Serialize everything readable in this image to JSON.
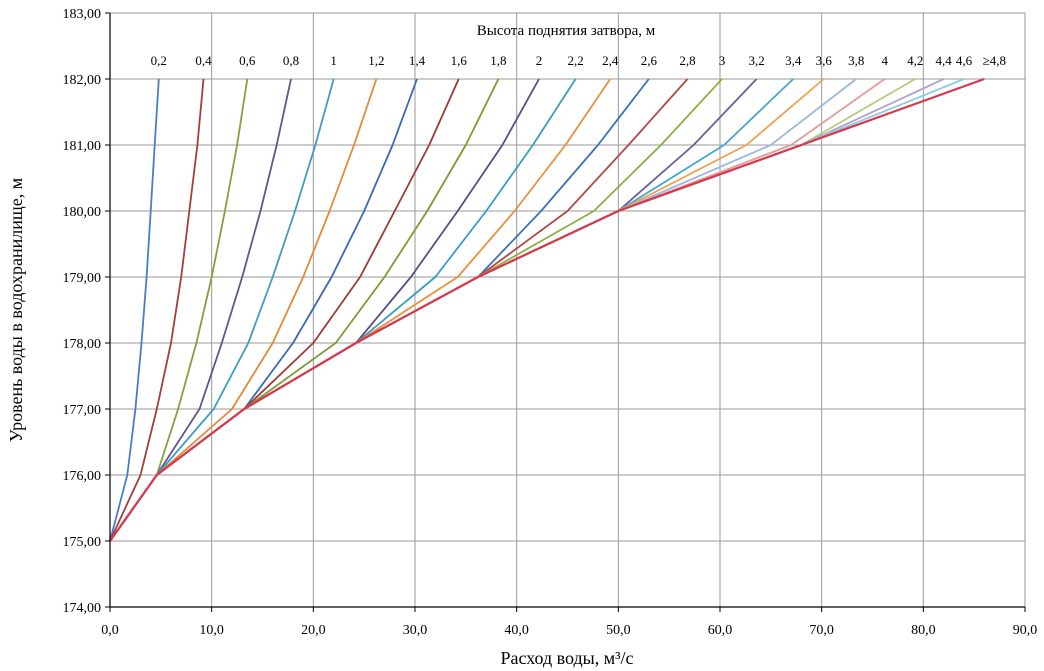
{
  "chart_data": {
    "type": "line",
    "xlabel": "Расход воды, м³/с",
    "ylabel": "Уровень воды в водохранилище, м",
    "legend_title": "Высота поднятия затвора, м",
    "xlim": [
      0,
      90
    ],
    "ylim": [
      174,
      183
    ],
    "x_ticks": [
      "0,0",
      "10,0",
      "20,0",
      "30,0",
      "40,0",
      "50,0",
      "60,0",
      "70,0",
      "80,0",
      "90,0"
    ],
    "y_ticks": [
      "174,00",
      "175,00",
      "176,00",
      "177,00",
      "178,00",
      "179,00",
      "180,00",
      "181,00",
      "182,00",
      "183,00"
    ],
    "grid": true,
    "series": [
      {
        "name": "0,2",
        "color": "#4a7ec4",
        "x": [
          0,
          1.7,
          2.5,
          3.1,
          3.6,
          4.0,
          4.4,
          4.8
        ],
        "y": [
          175,
          176,
          177,
          178,
          179,
          180,
          181,
          182
        ]
      },
      {
        "name": "0,4",
        "color": "#a0403c",
        "x": [
          0,
          3.0,
          4.6,
          6.0,
          7.0,
          7.8,
          8.6,
          9.2
        ],
        "y": [
          175,
          176,
          177,
          178,
          179,
          180,
          181,
          182
        ]
      },
      {
        "name": "0,6",
        "color": "#86a03c",
        "x": [
          0,
          4.6,
          6.7,
          8.5,
          10.0,
          11.3,
          12.5,
          13.5
        ],
        "y": [
          175,
          176,
          177,
          178,
          179,
          180,
          181,
          182
        ]
      },
      {
        "name": "0,8",
        "color": "#6a528c",
        "x": [
          0,
          4.6,
          8.8,
          11.0,
          13.0,
          14.8,
          16.4,
          17.8
        ],
        "y": [
          175,
          176,
          177,
          178,
          179,
          180,
          181,
          182
        ]
      },
      {
        "name": "1",
        "color": "#3d9dc4",
        "x": [
          0,
          4.6,
          10.2,
          13.6,
          16.0,
          18.2,
          20.2,
          22.0
        ],
        "y": [
          175,
          176,
          177,
          178,
          179,
          180,
          181,
          182
        ]
      },
      {
        "name": "1,2",
        "color": "#e08a3a",
        "x": [
          0,
          4.6,
          12.0,
          16.0,
          19.0,
          21.6,
          24.0,
          26.2
        ],
        "y": [
          175,
          176,
          177,
          178,
          179,
          180,
          181,
          182
        ]
      },
      {
        "name": "1,4",
        "color": "#3a6ab0",
        "x": [
          0,
          4.6,
          13.2,
          18.0,
          21.8,
          25.0,
          27.8,
          30.2
        ],
        "y": [
          175,
          176,
          177,
          178,
          179,
          180,
          181,
          182
        ]
      },
      {
        "name": "1,6",
        "color": "#9c3a36",
        "x": [
          0,
          4.6,
          13.2,
          20.0,
          24.6,
          28.0,
          31.4,
          34.3
        ],
        "y": [
          175,
          176,
          177,
          178,
          179,
          180,
          181,
          182
        ]
      },
      {
        "name": "1,8",
        "color": "#7c9c36",
        "x": [
          0,
          4.6,
          13.2,
          22.2,
          27.0,
          31.2,
          35.0,
          38.2
        ],
        "y": [
          175,
          176,
          177,
          178,
          179,
          180,
          181,
          182
        ]
      },
      {
        "name": "2",
        "color": "#5e4a86",
        "x": [
          0,
          4.6,
          13.2,
          24.2,
          29.6,
          34.2,
          38.6,
          42.2
        ],
        "y": [
          175,
          176,
          177,
          178,
          179,
          180,
          181,
          182
        ]
      },
      {
        "name": "2,2",
        "color": "#3a9cc2",
        "x": [
          0,
          4.6,
          13.2,
          24.2,
          32.0,
          37.0,
          41.6,
          45.8
        ],
        "y": [
          175,
          176,
          177,
          178,
          179,
          180,
          181,
          182
        ]
      },
      {
        "name": "2,4",
        "color": "#e8903c",
        "x": [
          0,
          4.6,
          13.2,
          24.2,
          34.2,
          39.8,
          44.8,
          49.2
        ],
        "y": [
          175,
          176,
          177,
          178,
          179,
          180,
          181,
          182
        ]
      },
      {
        "name": "2,6",
        "color": "#3c72b4",
        "x": [
          0,
          4.6,
          13.2,
          24.2,
          36.2,
          42.4,
          48.0,
          53.0
        ],
        "y": [
          175,
          176,
          177,
          178,
          179,
          180,
          181,
          182
        ]
      },
      {
        "name": "2,8",
        "color": "#b04a48",
        "x": [
          0,
          4.6,
          13.2,
          24.2,
          36.2,
          45.0,
          51.0,
          56.8
        ],
        "y": [
          175,
          176,
          177,
          178,
          179,
          180,
          181,
          182
        ]
      },
      {
        "name": "3",
        "color": "#8cb040",
        "x": [
          0,
          4.6,
          13.2,
          24.2,
          36.2,
          47.6,
          54.2,
          60.2
        ],
        "y": [
          175,
          176,
          177,
          178,
          179,
          180,
          181,
          182
        ]
      },
      {
        "name": "3,2",
        "color": "#6e5c98",
        "x": [
          0,
          4.6,
          13.2,
          24.2,
          36.2,
          50.0,
          57.4,
          63.6
        ],
        "y": [
          175,
          176,
          177,
          178,
          179,
          180,
          181,
          182
        ]
      },
      {
        "name": "3,4",
        "color": "#46a6cc",
        "x": [
          0,
          4.6,
          13.2,
          24.2,
          36.2,
          50.0,
          60.4,
          67.2
        ],
        "y": [
          175,
          176,
          177,
          178,
          179,
          180,
          181,
          182
        ]
      },
      {
        "name": "3,6",
        "color": "#f0a050",
        "x": [
          0,
          4.6,
          13.2,
          24.2,
          36.2,
          50.0,
          62.6,
          70.2
        ],
        "y": [
          175,
          176,
          177,
          178,
          179,
          180,
          181,
          182
        ]
      },
      {
        "name": "3,8",
        "color": "#9cb8e0",
        "x": [
          0,
          4.6,
          13.2,
          24.2,
          36.2,
          50.0,
          65.0,
          73.4
        ],
        "y": [
          175,
          176,
          177,
          178,
          179,
          180,
          181,
          182
        ]
      },
      {
        "name": "4",
        "color": "#e09c9a",
        "x": [
          0,
          4.6,
          13.2,
          24.2,
          36.2,
          50.0,
          67.0,
          76.2
        ],
        "y": [
          175,
          176,
          177,
          178,
          179,
          180,
          181,
          182
        ]
      },
      {
        "name": "4,2",
        "color": "#b8cc80",
        "x": [
          0,
          4.6,
          13.2,
          24.2,
          36.2,
          50.0,
          68.0,
          79.2
        ],
        "y": [
          175,
          176,
          177,
          178,
          179,
          180,
          181,
          182
        ]
      },
      {
        "name": "4,4",
        "color": "#b0a4cc",
        "x": [
          0,
          4.6,
          13.2,
          24.2,
          36.2,
          50.0,
          68.0,
          82.0
        ],
        "y": [
          175,
          176,
          177,
          178,
          179,
          180,
          181,
          182
        ]
      },
      {
        "name": "4,6",
        "color": "#8ccce0",
        "x": [
          0,
          4.6,
          13.2,
          24.2,
          36.2,
          50.0,
          68.0,
          84.0
        ],
        "y": [
          175,
          176,
          177,
          178,
          179,
          180,
          181,
          182
        ]
      },
      {
        "name": "≥4,8",
        "color": "#d8384a",
        "x": [
          0,
          4.6,
          13.2,
          24.2,
          36.2,
          50.0,
          68.0,
          86.0
        ],
        "y": [
          175,
          176,
          177,
          178,
          179,
          180,
          181,
          182
        ]
      }
    ]
  }
}
